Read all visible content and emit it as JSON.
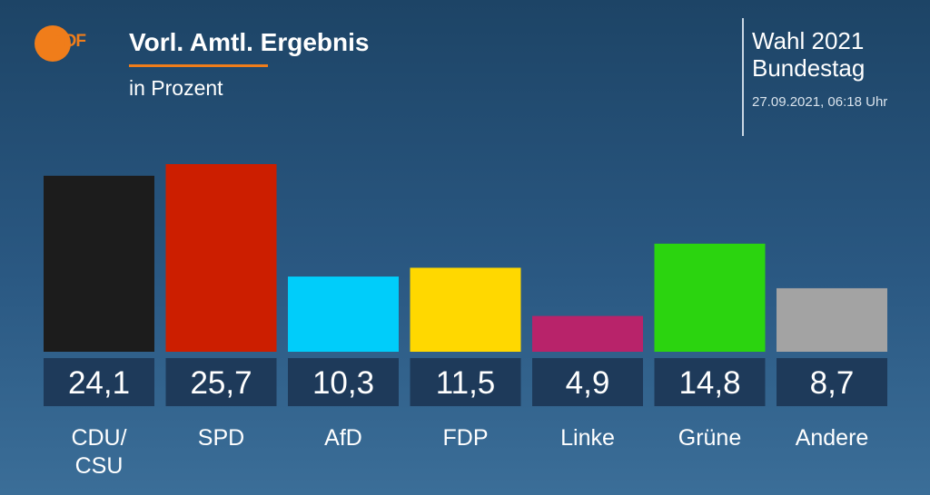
{
  "header": {
    "logo_text": "ZDF",
    "title": "Vorl. Amtl. Ergebnis",
    "subtitle": "in Prozent",
    "election_line1": "Wahl 2021",
    "election_line2": "Bundestag",
    "timestamp": "27.09.2021, 06:18 Uhr"
  },
  "chart_data": {
    "type": "bar",
    "title": "Vorl. Amtl. Ergebnis",
    "subtitle": "in Prozent",
    "categories": [
      "CDU/\nCSU",
      "SPD",
      "AfD",
      "FDP",
      "Linke",
      "Grüne",
      "Andere"
    ],
    "values": [
      24.1,
      25.7,
      10.3,
      11.5,
      4.9,
      14.8,
      8.7
    ],
    "value_labels": [
      "24,1",
      "25,7",
      "10,3",
      "11,5",
      "4,9",
      "14,8",
      "8,7"
    ],
    "colors": [
      "#1c1c1c",
      "#cc1e00",
      "#00cdfa",
      "#ffd800",
      "#b8236a",
      "#2bd40f",
      "#a3a3a3"
    ],
    "label_box_color": "#1e3a5a",
    "ylim": [
      0,
      25.7
    ],
    "grid": false,
    "legend": "none"
  }
}
